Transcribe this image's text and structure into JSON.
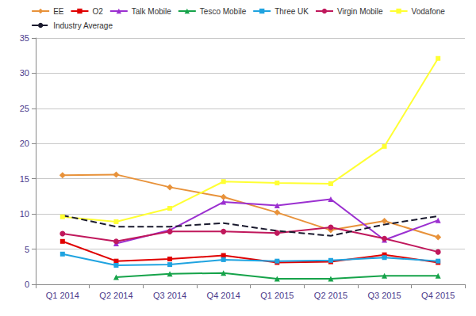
{
  "chart_data": {
    "type": "line",
    "categories": [
      "Q1 2014",
      "Q2 2014",
      "Q3 2014",
      "Q4 2014",
      "Q1 2015",
      "Q2 2015",
      "Q3 2015",
      "Q4 2015"
    ],
    "series": [
      {
        "name": "EE",
        "color": "#e8923a",
        "marker": "diamond",
        "line_style": "solid",
        "values": [
          15.5,
          15.6,
          13.8,
          12.4,
          10.2,
          7.7,
          9.0,
          6.7
        ]
      },
      {
        "name": "O2",
        "color": "#e00000",
        "marker": "square",
        "line_style": "solid",
        "values": [
          6.1,
          3.3,
          3.6,
          4.1,
          3.1,
          3.2,
          4.2,
          3.1
        ]
      },
      {
        "name": "Talk Mobile",
        "color": "#9b30d0",
        "marker": "triangle",
        "line_style": "solid",
        "values": [
          null,
          5.8,
          7.7,
          11.7,
          11.2,
          12.1,
          6.3,
          9.1
        ]
      },
      {
        "name": "Tesco Mobile",
        "color": "#16a34a",
        "marker": "triangle",
        "line_style": "solid",
        "values": [
          null,
          1.0,
          1.5,
          1.6,
          0.8,
          0.8,
          1.2,
          1.2
        ]
      },
      {
        "name": "Three UK",
        "color": "#1fa3e0",
        "marker": "square",
        "line_style": "solid",
        "values": [
          4.3,
          2.7,
          2.8,
          3.5,
          3.3,
          3.4,
          3.8,
          3.3
        ]
      },
      {
        "name": "Virgin Mobile",
        "color": "#c0185c",
        "marker": "circle",
        "line_style": "solid",
        "values": [
          7.2,
          6.1,
          7.5,
          7.5,
          7.3,
          8.1,
          6.5,
          4.6
        ]
      },
      {
        "name": "Vodafone",
        "color": "#ffff33",
        "marker": "square",
        "line_style": "solid",
        "values": [
          9.6,
          8.9,
          10.8,
          14.6,
          14.4,
          14.3,
          19.6,
          32.1
        ]
      },
      {
        "name": "Industry Average",
        "color": "#1a1a2e",
        "marker": "none",
        "line_style": "dashed",
        "values": [
          9.8,
          8.2,
          8.2,
          8.7,
          7.6,
          6.9,
          8.5,
          9.7
        ]
      }
    ],
    "ylim": [
      0,
      35
    ],
    "yticks": [
      0,
      5,
      10,
      15,
      20,
      25,
      30,
      35
    ],
    "grid": true,
    "legend": "top"
  }
}
